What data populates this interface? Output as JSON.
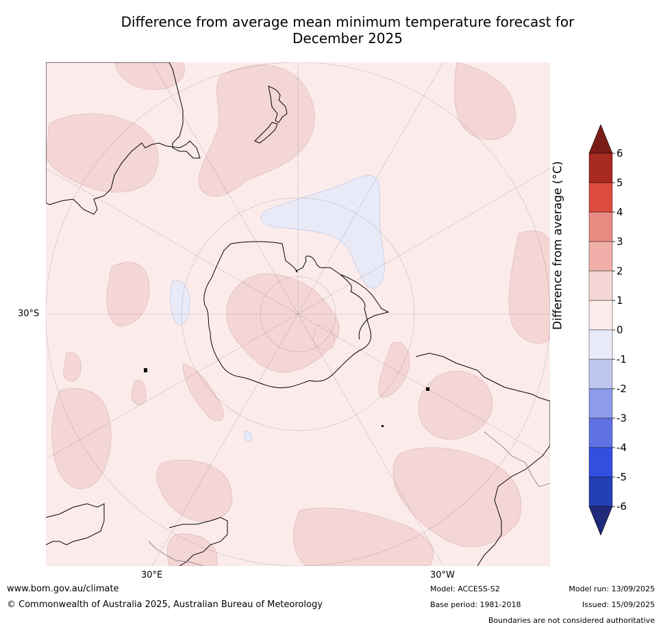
{
  "title_line1": "Difference from average mean minimum temperature forecast for",
  "title_line2": "December 2025",
  "map": {
    "projection": "south polar stereographic",
    "lat_label": "30°S",
    "lon_labels": [
      "30°E",
      "30°W"
    ],
    "ocean_color": "#fbeceb",
    "regions": [
      {
        "name": "warm-anomaly",
        "category": "0 to 1",
        "color": "#fbeceb"
      },
      {
        "name": "warm-anomaly",
        "category": "1 to 2",
        "color": "#f4d6d5"
      },
      {
        "name": "cool-anomaly",
        "category": "-1 to 0",
        "color": "#e8eaf7"
      }
    ]
  },
  "colorbar": {
    "label": "Difference from average (°C)",
    "ticks": [
      "6",
      "5",
      "4",
      "3",
      "2",
      "1",
      "0",
      "-1",
      "-2",
      "-3",
      "-4",
      "-5",
      "-6"
    ],
    "bins": [
      {
        "range": "> 6",
        "color": "#7a1d17"
      },
      {
        "range": "5 to 6",
        "color": "#a92a20"
      },
      {
        "range": "4 to 5",
        "color": "#dd4b3f"
      },
      {
        "range": "3 to 4",
        "color": "#e98b81"
      },
      {
        "range": "2 to 3",
        "color": "#f0b0a9"
      },
      {
        "range": "1 to 2",
        "color": "#f4d6d5"
      },
      {
        "range": "0 to 1",
        "color": "#fbeceb"
      },
      {
        "range": "-1 to 0",
        "color": "#e8eaf7"
      },
      {
        "range": "-2 to -1",
        "color": "#bfc6f0"
      },
      {
        "range": "-3 to -2",
        "color": "#8c9bea"
      },
      {
        "range": "-4 to -3",
        "color": "#5f72e3"
      },
      {
        "range": "-5 to -4",
        "color": "#334fe0"
      },
      {
        "range": "-6 to -5",
        "color": "#253fb4"
      },
      {
        "range": "< -6",
        "color": "#1f2a7a"
      }
    ]
  },
  "footer": {
    "website": "www.bom.gov.au/climate",
    "copyright": "© Commonwealth of Australia 2025, Australian Bureau of Meteorology",
    "model": "Model: ACCESS-S2",
    "base_period": "Base period: 1981-2018",
    "model_run": "Model run: 13/09/2025",
    "issued": "Issued: 15/09/2025",
    "boundaries": "Boundaries are not considered authoritative"
  }
}
